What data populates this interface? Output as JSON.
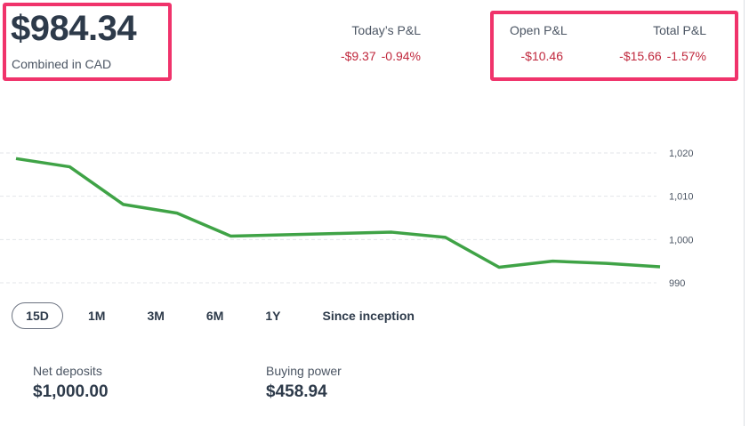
{
  "account": {
    "balance": "$984.34",
    "currency_note": "Combined in CAD"
  },
  "pnl": {
    "today": {
      "label": "Today’s P&L",
      "amount": "-$9.37",
      "percent": "-0.94%"
    },
    "open": {
      "label": "Open P&L",
      "amount": "-$10.46"
    },
    "total": {
      "label": "Total P&L",
      "amount": "-$15.66",
      "percent": "-1.57%"
    }
  },
  "colors": {
    "highlight": "#f0336b",
    "negative": "#c0283d",
    "line": "#3fa346",
    "text": "#2d3a4a"
  },
  "chart_data": {
    "type": "line",
    "series": [
      {
        "values": [
          1018.7,
          1016.8,
          1008.1,
          1006.1,
          1000.8,
          1001.1,
          1001.4,
          1001.7,
          1000.5,
          993.6,
          995.0,
          994.5,
          993.7
        ]
      }
    ],
    "y_ticks": [
      "1,020",
      "1,010",
      "1,000",
      "990"
    ],
    "ylim": [
      988,
      1030
    ],
    "grid": true
  },
  "ranges": {
    "items": [
      "15D",
      "1M",
      "3M",
      "6M",
      "1Y",
      "Since inception"
    ],
    "selected": "15D"
  },
  "stats": {
    "net_deposits": {
      "label": "Net deposits",
      "value": "$1,000.00"
    },
    "buying_power": {
      "label": "Buying power",
      "value": "$458.94"
    }
  }
}
